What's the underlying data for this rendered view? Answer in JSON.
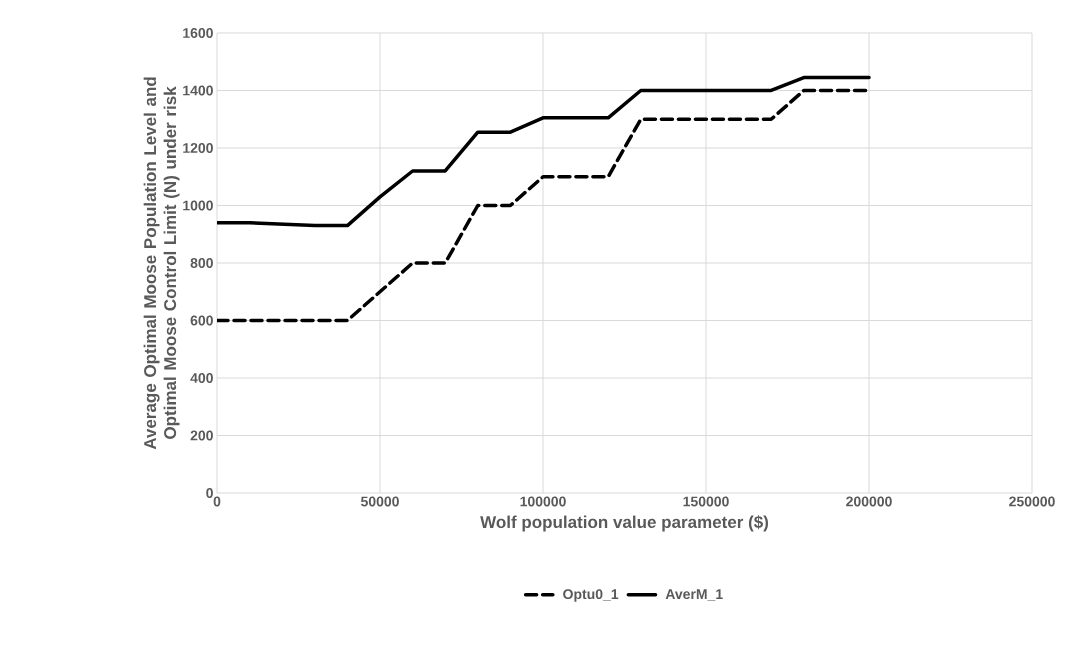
{
  "chart_data": {
    "type": "line",
    "xlabel": "Wolf population value parameter ($)",
    "ylabel": "Average Optimal Moose Population Level and Optimal Moose Control Limit (N) under risk",
    "x": [
      0,
      10000,
      20000,
      30000,
      40000,
      50000,
      60000,
      70000,
      80000,
      90000,
      100000,
      110000,
      120000,
      130000,
      140000,
      150000,
      160000,
      170000,
      180000,
      190000,
      200000
    ],
    "series": [
      {
        "name": "Optu0_1",
        "color": "#000000",
        "line_style": "dashed",
        "values": [
          600,
          600,
          600,
          600,
          600,
          700,
          800,
          800,
          1000,
          1000,
          1100,
          1100,
          1100,
          1300,
          1300,
          1300,
          1300,
          1300,
          1400,
          1400,
          1400
        ]
      },
      {
        "name": "AverM_1",
        "color": "#000000",
        "line_style": "solid",
        "values": [
          940,
          940,
          935,
          930,
          930,
          1030,
          1120,
          1120,
          1255,
          1255,
          1305,
          1305,
          1305,
          1400,
          1400,
          1400,
          1400,
          1400,
          1445,
          1445,
          1445
        ]
      }
    ],
    "xlim": [
      0,
      250000
    ],
    "xticks": [
      0,
      50000,
      100000,
      150000,
      200000,
      250000
    ],
    "ylim": [
      0,
      1600
    ],
    "yticks": [
      0,
      200,
      400,
      600,
      800,
      1000,
      1200,
      1400,
      1600
    ],
    "grid": true,
    "legend": "bottom",
    "marker": "none"
  }
}
